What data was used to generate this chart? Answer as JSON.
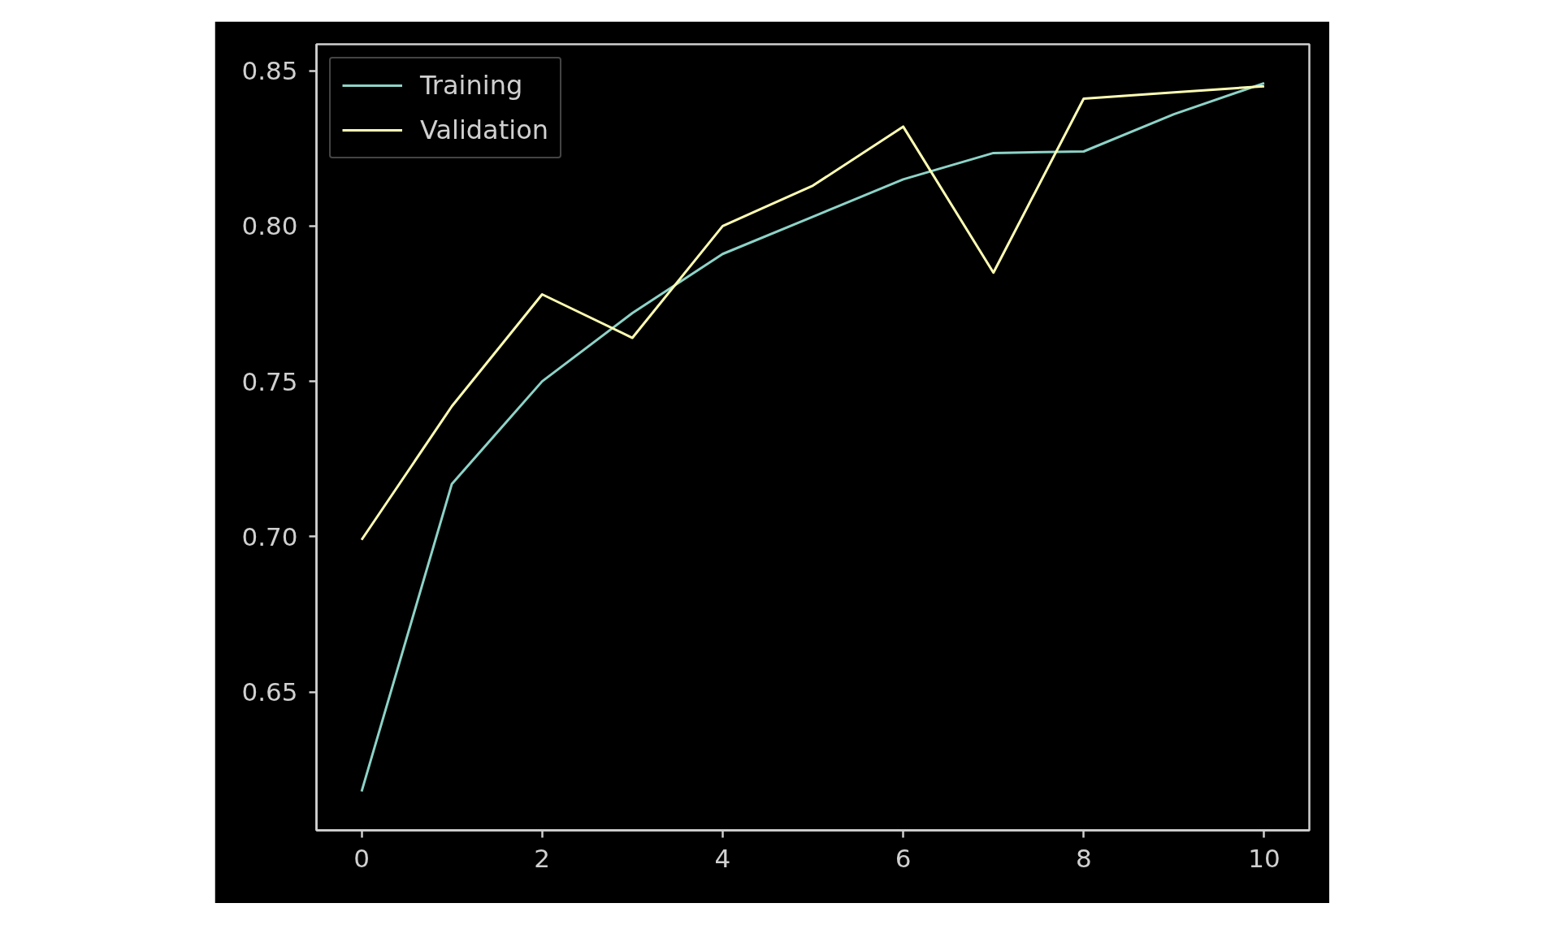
{
  "chart_data": {
    "type": "line",
    "x": [
      0,
      1,
      2,
      3,
      4,
      5,
      6,
      7,
      8,
      9,
      10
    ],
    "series": [
      {
        "name": "Training",
        "color": "#8dd3c7",
        "values": [
          0.618,
          0.717,
          0.75,
          0.772,
          0.791,
          0.803,
          0.815,
          0.8235,
          0.824,
          0.836,
          0.846
        ]
      },
      {
        "name": "Validation",
        "color": "#feffb3",
        "values": [
          0.699,
          0.742,
          0.778,
          0.764,
          0.8,
          0.813,
          0.832,
          0.785,
          0.841,
          0.843,
          0.845
        ]
      }
    ],
    "xlim": [
      -0.5,
      10.5
    ],
    "ylim": [
      0.6055,
      0.8585
    ],
    "xticks": [
      0,
      2,
      4,
      6,
      8,
      10
    ],
    "yticks": [
      0.65,
      {
        "value": 0.7,
        "label": "0.70"
      },
      0.75,
      {
        "value": 0.8,
        "label": "0.80"
      },
      0.85
    ],
    "legend": "top left",
    "grid": false,
    "line_style": "solid",
    "marker": "none"
  }
}
